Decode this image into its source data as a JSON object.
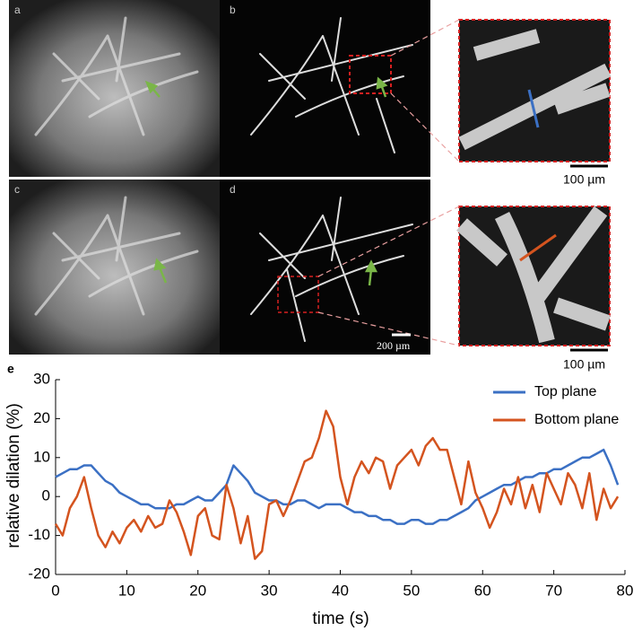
{
  "panels": {
    "a": "a",
    "b": "b",
    "c": "c",
    "d": "d",
    "e": "e"
  },
  "scale_bars": {
    "inset_top": "100 µm",
    "inset_bottom": "100 µm",
    "main": "200 µm"
  },
  "chart_data": {
    "type": "line",
    "xlabel": "time (s)",
    "ylabel": "relative dilation (%)",
    "x": [
      0,
      1,
      2,
      3,
      4,
      5,
      6,
      7,
      8,
      9,
      10,
      11,
      12,
      13,
      14,
      15,
      16,
      17,
      18,
      19,
      20,
      21,
      22,
      23,
      24,
      25,
      26,
      27,
      28,
      29,
      30,
      31,
      32,
      33,
      34,
      35,
      36,
      37,
      38,
      39,
      40,
      41,
      42,
      43,
      44,
      45,
      46,
      47,
      48,
      49,
      50,
      51,
      52,
      53,
      54,
      55,
      56,
      57,
      58,
      59,
      60,
      61,
      62,
      63,
      64,
      65,
      66,
      67,
      68,
      69,
      70,
      71,
      72,
      73,
      74,
      75,
      76,
      77,
      78,
      79
    ],
    "series": [
      {
        "name": "Top plane",
        "color": "#3b70c4",
        "values": [
          5,
          6,
          7,
          7,
          8,
          8,
          6,
          4,
          3,
          1,
          0,
          -1,
          -2,
          -2,
          -3,
          -3,
          -3,
          -2,
          -2,
          -1,
          0,
          -1,
          -1,
          1,
          3,
          8,
          6,
          4,
          1,
          0,
          -1,
          -1,
          -2,
          -2,
          -1,
          -1,
          -2,
          -3,
          -2,
          -2,
          -2,
          -3,
          -4,
          -4,
          -5,
          -5,
          -6,
          -6,
          -7,
          -7,
          -6,
          -6,
          -7,
          -7,
          -6,
          -6,
          -5,
          -4,
          -3,
          -1,
          0,
          1,
          2,
          3,
          3,
          4,
          5,
          5,
          6,
          6,
          7,
          7,
          8,
          9,
          10,
          10,
          11,
          12,
          8,
          3
        ]
      },
      {
        "name": "Bottom plane",
        "color": "#d4541f",
        "values": [
          -7,
          -10,
          -3,
          0,
          5,
          -3,
          -10,
          -13,
          -9,
          -12,
          -8,
          -6,
          -9,
          -5,
          -8,
          -7,
          -1,
          -4,
          -9,
          -15,
          -5,
          -3,
          -10,
          -11,
          3,
          -3,
          -12,
          -5,
          -16,
          -14,
          -2,
          -1,
          -5,
          -1,
          4,
          9,
          10,
          15,
          22,
          18,
          5,
          -2,
          5,
          9,
          6,
          10,
          9,
          2,
          8,
          10,
          12,
          8,
          13,
          15,
          12,
          12,
          5,
          -2,
          9,
          1,
          -3,
          -8,
          -4,
          2,
          -2,
          5,
          -3,
          3,
          -4,
          6,
          2,
          -2,
          6,
          3,
          -3,
          6,
          -6,
          2,
          -3,
          0
        ]
      }
    ],
    "xlim": [
      0,
      80
    ],
    "xticks": [
      0,
      10,
      20,
      30,
      40,
      50,
      60,
      70,
      80
    ],
    "ylim": [
      -20,
      30
    ],
    "yticks": [
      -20,
      -10,
      0,
      10,
      20,
      30
    ],
    "grid": false,
    "legend": "upper right"
  }
}
